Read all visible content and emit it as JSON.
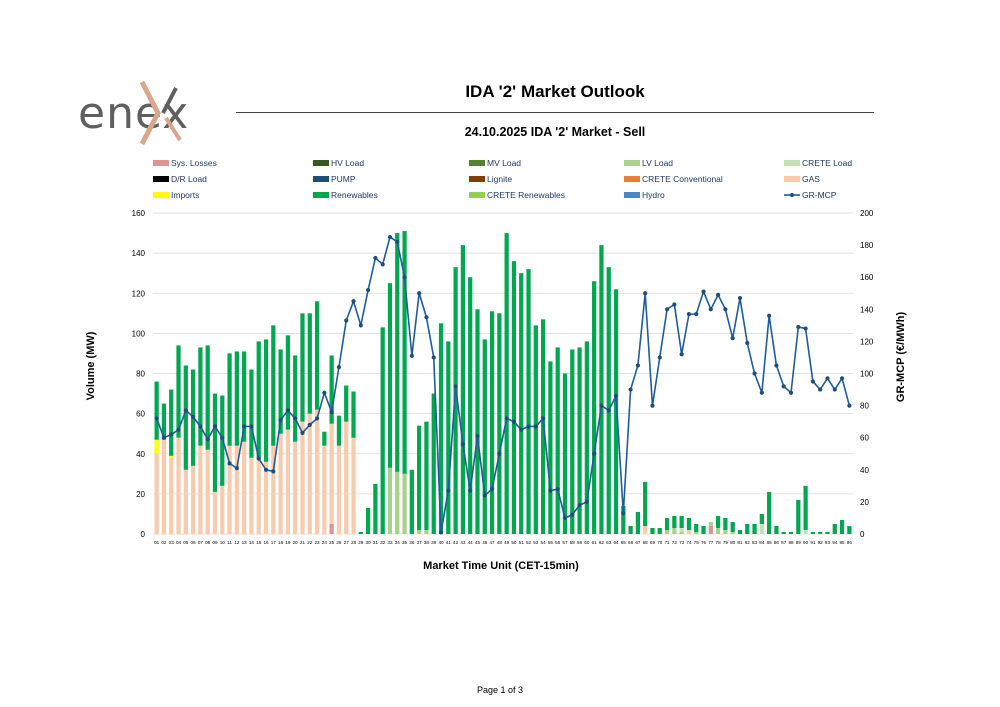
{
  "brand": {
    "name": "enex"
  },
  "header": {
    "title": "IDA '2' Market Outlook"
  },
  "footer": {
    "page_label": "Page 1 of 3"
  },
  "colors": {
    "Sys. Losses": "#d99694",
    "HV Load": "#385723",
    "MV Load": "#548235",
    "LV Load": "#a9d18e",
    "CRETE Load": "#c5e0b4",
    "D/R Load": "#000000",
    "PUMP": "#1f4e79",
    "Lignite": "#843c0c",
    "CRETE Conventional": "#ed7d31",
    "GAS": "#f8cbad",
    "Imports": "#ffff00",
    "Renewables": "#00a650",
    "CRETE Renewables": "#92d050",
    "Hydro": "#4a86c8",
    "GR-MCP": "#1f5c99"
  },
  "chart_data": {
    "type": "bar",
    "title": "24.10.2025  IDA '2' Market - Sell",
    "xlabel": "Market Time Unit (CET-15min)",
    "ylabel": "Volume (MW)",
    "y2label": "GR-MCP (€/MWh)",
    "ylim": [
      0,
      160
    ],
    "y2lim": [
      0,
      200
    ],
    "yticks": [
      0,
      20,
      40,
      60,
      80,
      100,
      120,
      140,
      160
    ],
    "y2ticks": [
      0,
      20,
      40,
      60,
      80,
      100,
      120,
      140,
      160,
      180,
      200
    ],
    "legend": [
      "Sys. Losses",
      "HV Load",
      "MV Load",
      "LV Load",
      "CRETE Load",
      "D/R Load",
      "PUMP",
      "Lignite",
      "CRETE Conventional",
      "GAS",
      "Imports",
      "Renewables",
      "CRETE Renewables",
      "Hydro",
      "GR-MCP"
    ],
    "categories": [
      "01",
      "02",
      "03",
      "04",
      "05",
      "06",
      "07",
      "08",
      "09",
      "10",
      "11",
      "12",
      "13",
      "14",
      "15",
      "16",
      "17",
      "18",
      "19",
      "20",
      "21",
      "22",
      "23",
      "24",
      "25",
      "26",
      "27",
      "28",
      "29",
      "30",
      "31",
      "32",
      "33",
      "34",
      "35",
      "36",
      "37",
      "38",
      "39",
      "40",
      "41",
      "42",
      "43",
      "44",
      "45",
      "46",
      "47",
      "48",
      "49",
      "50",
      "51",
      "52",
      "53",
      "54",
      "55",
      "56",
      "57",
      "58",
      "59",
      "60",
      "61",
      "62",
      "63",
      "64",
      "65",
      "66",
      "67",
      "68",
      "69",
      "70",
      "71",
      "72",
      "73",
      "74",
      "75",
      "76",
      "77",
      "78",
      "79",
      "80",
      "81",
      "82",
      "83",
      "84",
      "85",
      "86",
      "87",
      "88",
      "89",
      "90",
      "91",
      "92",
      "93",
      "94",
      "95",
      "96"
    ],
    "series": [
      {
        "name": "Sys. Losses",
        "kind": "bar",
        "values": [
          0,
          0,
          0,
          0,
          0,
          0,
          0,
          0,
          0,
          0,
          0,
          0,
          0,
          0,
          0,
          0,
          0,
          0,
          0,
          0,
          0,
          0,
          0,
          0,
          5,
          0,
          0,
          0,
          0,
          0,
          0,
          0,
          0,
          0,
          0,
          0,
          0,
          0,
          0,
          0,
          0,
          0,
          0,
          0,
          0,
          0,
          0,
          0,
          0,
          0,
          0,
          0,
          0,
          0,
          0,
          0,
          0,
          0,
          0,
          0,
          0,
          0,
          0,
          0,
          0,
          0,
          0,
          0,
          0,
          0,
          0,
          0,
          0,
          0,
          0,
          0,
          4,
          0,
          0,
          0,
          0,
          0,
          0,
          0,
          0,
          0,
          0,
          0,
          0,
          0,
          0,
          0,
          0,
          0,
          0,
          0
        ]
      },
      {
        "name": "LV Load",
        "kind": "bar",
        "values": [
          0,
          0,
          0,
          0,
          0,
          0,
          0,
          0,
          0,
          0,
          0,
          0,
          0,
          0,
          0,
          0,
          0,
          0,
          0,
          0,
          0,
          0,
          0,
          0,
          0,
          0,
          0,
          0,
          0,
          0,
          0,
          0,
          33,
          31,
          30,
          0,
          2,
          2,
          0,
          0,
          0,
          0,
          0,
          0,
          0,
          0,
          0,
          0,
          0,
          0,
          0,
          0,
          0,
          0,
          0,
          0,
          0,
          0,
          0,
          0,
          0,
          0,
          0,
          0,
          0,
          0,
          0,
          0,
          0,
          0,
          2,
          3,
          1,
          0,
          1,
          0,
          2,
          3,
          2,
          1,
          0,
          0,
          0,
          0,
          0,
          0,
          0,
          0,
          0,
          0,
          0,
          0,
          0,
          0,
          0,
          0
        ]
      },
      {
        "name": "CRETE Load",
        "kind": "bar",
        "values": [
          0,
          0,
          0,
          0,
          0,
          0,
          0,
          0,
          0,
          0,
          0,
          0,
          0,
          0,
          0,
          0,
          0,
          0,
          0,
          0,
          0,
          0,
          0,
          0,
          0,
          0,
          0,
          0,
          0,
          0,
          0,
          0,
          0,
          0,
          0,
          0,
          0,
          0,
          0,
          0,
          0,
          0,
          0,
          0,
          0,
          0,
          0,
          0,
          0,
          0,
          0,
          0,
          0,
          0,
          0,
          0,
          0,
          0,
          0,
          0,
          0,
          0,
          0,
          0,
          0,
          0,
          0,
          0,
          0,
          0,
          0,
          0,
          2,
          0,
          0,
          0,
          0,
          0,
          0,
          0,
          0,
          0,
          0,
          5,
          0,
          0,
          0,
          0,
          0,
          2,
          0,
          0,
          0,
          0,
          0,
          0
        ]
      },
      {
        "name": "GAS",
        "kind": "bar",
        "values": [
          40,
          47,
          38,
          48,
          32,
          34,
          44,
          42,
          21,
          24,
          44,
          44,
          46,
          38,
          38,
          36,
          44,
          50,
          52,
          46,
          56,
          60,
          62,
          44,
          50,
          44,
          56,
          48,
          0,
          0,
          0,
          0,
          0,
          0,
          0,
          0,
          0,
          0,
          0,
          0,
          0,
          0,
          0,
          0,
          0,
          0,
          0,
          0,
          0,
          0,
          0,
          0,
          0,
          0,
          0,
          0,
          0,
          0,
          0,
          0,
          0,
          0,
          0,
          0,
          0,
          0,
          0,
          4,
          0,
          0,
          0,
          0,
          0,
          2,
          0,
          0,
          0,
          0,
          0,
          0,
          0,
          0,
          0,
          0,
          0,
          0,
          0,
          0,
          0,
          0,
          0,
          0,
          0,
          0,
          0,
          0
        ]
      },
      {
        "name": "Imports",
        "kind": "bar",
        "values": [
          7,
          0,
          1,
          0,
          0,
          0,
          0,
          0,
          0,
          0,
          0,
          0,
          0,
          0,
          0,
          0,
          0,
          0,
          0,
          0,
          0,
          0,
          0,
          0,
          0,
          0,
          0,
          0,
          0,
          0,
          0,
          0,
          0,
          0,
          0,
          0,
          0,
          0,
          0,
          0,
          0,
          0,
          0,
          0,
          0,
          0,
          0,
          0,
          0,
          0,
          0,
          0,
          0,
          0,
          0,
          0,
          0,
          0,
          0,
          0,
          0,
          0,
          0,
          0,
          0,
          0,
          0,
          0,
          0,
          0,
          0,
          0,
          0,
          0,
          0,
          0,
          0,
          0,
          0,
          0,
          0,
          0,
          0,
          0,
          0,
          0,
          0,
          0,
          0,
          0,
          0,
          0,
          0,
          0,
          0,
          0
        ]
      },
      {
        "name": "Renewables",
        "kind": "bar",
        "values": [
          29,
          18,
          33,
          46,
          52,
          48,
          49,
          52,
          49,
          45,
          46,
          47,
          45,
          44,
          58,
          61,
          60,
          42,
          47,
          43,
          54,
          50,
          54,
          7,
          34,
          15,
          18,
          23,
          1,
          13,
          25,
          103,
          92,
          119,
          121,
          32,
          52,
          54,
          70,
          105,
          96,
          133,
          144,
          128,
          112,
          97,
          111,
          110,
          150,
          136,
          130,
          132,
          104,
          107,
          86,
          93,
          80,
          92,
          93,
          96,
          126,
          144,
          133,
          122,
          14,
          4,
          11,
          22,
          3,
          3,
          6,
          6,
          6,
          6,
          4,
          4,
          0,
          6,
          6,
          5,
          2,
          5,
          5,
          5,
          21,
          4,
          1,
          1,
          17,
          22,
          1,
          1,
          1,
          5,
          7,
          4
        ]
      },
      {
        "name": "Hydro",
        "kind": "bar",
        "values": [
          0,
          0,
          0,
          0,
          0,
          0,
          0,
          0,
          0,
          0,
          0,
          0,
          0,
          0,
          0,
          0,
          0,
          0,
          0,
          0,
          0,
          0,
          0,
          0,
          0,
          0,
          0,
          0,
          0,
          0,
          0,
          0,
          0,
          0,
          0,
          0,
          0,
          0,
          0,
          0,
          0,
          0,
          0,
          0,
          0,
          0,
          0,
          0,
          0,
          0,
          0,
          0,
          0,
          0,
          0,
          0,
          0,
          0,
          0,
          0,
          0,
          0,
          0,
          0,
          0,
          0,
          0,
          0,
          0,
          0,
          0,
          0,
          0,
          0,
          0,
          0,
          0,
          0,
          0,
          0,
          0,
          0,
          0,
          0,
          0,
          0,
          0,
          0,
          0,
          0,
          0,
          0,
          0,
          0,
          0,
          0
        ]
      },
      {
        "name": "GR-MCP",
        "kind": "line",
        "axis": "right",
        "values": [
          72,
          60,
          62,
          65,
          77,
          73,
          67,
          59,
          67,
          60,
          44,
          41,
          67,
          67,
          47,
          40,
          39,
          71,
          77,
          72,
          63,
          68,
          72,
          88,
          76,
          104,
          133,
          145,
          130,
          152,
          172,
          168,
          185,
          182,
          160,
          111,
          150,
          135,
          110,
          1,
          27,
          92,
          56,
          27,
          61,
          24,
          28,
          50,
          72,
          70,
          65,
          67,
          67,
          72,
          27,
          28,
          10,
          12,
          18,
          20,
          50,
          80,
          77,
          86,
          13,
          90,
          105,
          150,
          80,
          110,
          140,
          143,
          112,
          137,
          137,
          151,
          140,
          149,
          140,
          122,
          147,
          119,
          100,
          88,
          136,
          105,
          92,
          88,
          129,
          128,
          95,
          90,
          97,
          90,
          97,
          80
        ]
      }
    ]
  }
}
